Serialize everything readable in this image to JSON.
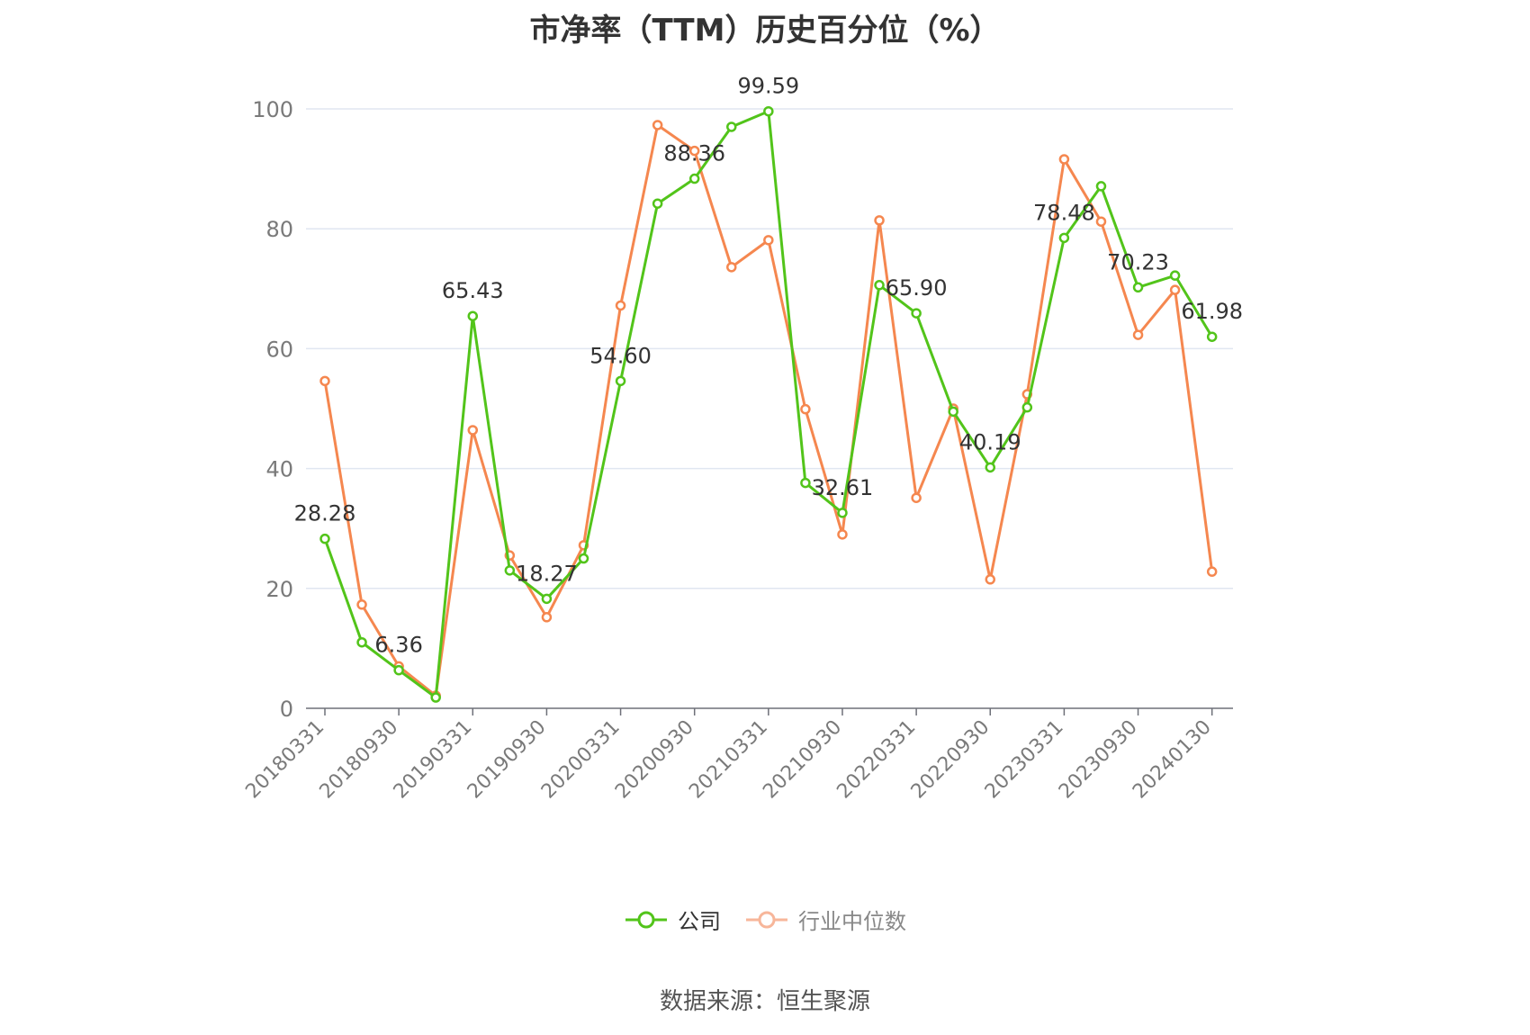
{
  "chart_data": {
    "type": "line",
    "title": "市净率（TTM）历史百分位（%）",
    "source": "数据来源：恒生聚源",
    "ylim": [
      0,
      100
    ],
    "yticks": [
      "0",
      "20",
      "40",
      "60",
      "80",
      "100"
    ],
    "grid": true,
    "legend_position": "bottom",
    "x_labels": [
      "20180331",
      "20180930",
      "20190331",
      "20190930",
      "20200331",
      "20200930",
      "20210331",
      "20210930",
      "20220331",
      "20220930",
      "20230331",
      "20230930",
      "20240130"
    ],
    "x": [
      "20180331",
      "20180630",
      "20180930",
      "20181231",
      "20190331",
      "20190630",
      "20190930",
      "20191231",
      "20200331",
      "20200630",
      "20200930",
      "20201231",
      "20210331",
      "20210630",
      "20210930",
      "20211231",
      "20220331",
      "20220630",
      "20220930",
      "20221231",
      "20230331",
      "20230630",
      "20230930",
      "20231231",
      "20240130"
    ],
    "series": [
      {
        "name": "公司",
        "color": "#52c41a",
        "values": [
          28.28,
          11.0,
          6.36,
          1.8,
          65.43,
          23.0,
          18.27,
          25.0,
          54.6,
          84.2,
          88.36,
          97.0,
          99.59,
          37.6,
          32.61,
          70.6,
          65.9,
          49.5,
          40.19,
          50.2,
          78.48,
          87.1,
          70.23,
          72.2,
          61.98
        ],
        "labels": {
          "0": "28.28",
          "2": "6.36",
          "4": "65.43",
          "6": "18.27",
          "8": "54.60",
          "10": "88.36",
          "12": "99.59",
          "14": "32.61",
          "16": "65.90",
          "18": "40.19",
          "20": "78.48",
          "22": "70.23",
          "24": "61.98"
        }
      },
      {
        "name": "行业中位数",
        "color": "#f5874f",
        "values": [
          54.6,
          17.3,
          7.0,
          2.1,
          46.4,
          25.5,
          15.2,
          27.2,
          67.2,
          97.3,
          93.0,
          73.6,
          78.1,
          49.9,
          29.0,
          81.4,
          35.1,
          50.0,
          21.5,
          52.4,
          91.6,
          81.2,
          62.3,
          69.8,
          22.8
        ]
      }
    ]
  }
}
